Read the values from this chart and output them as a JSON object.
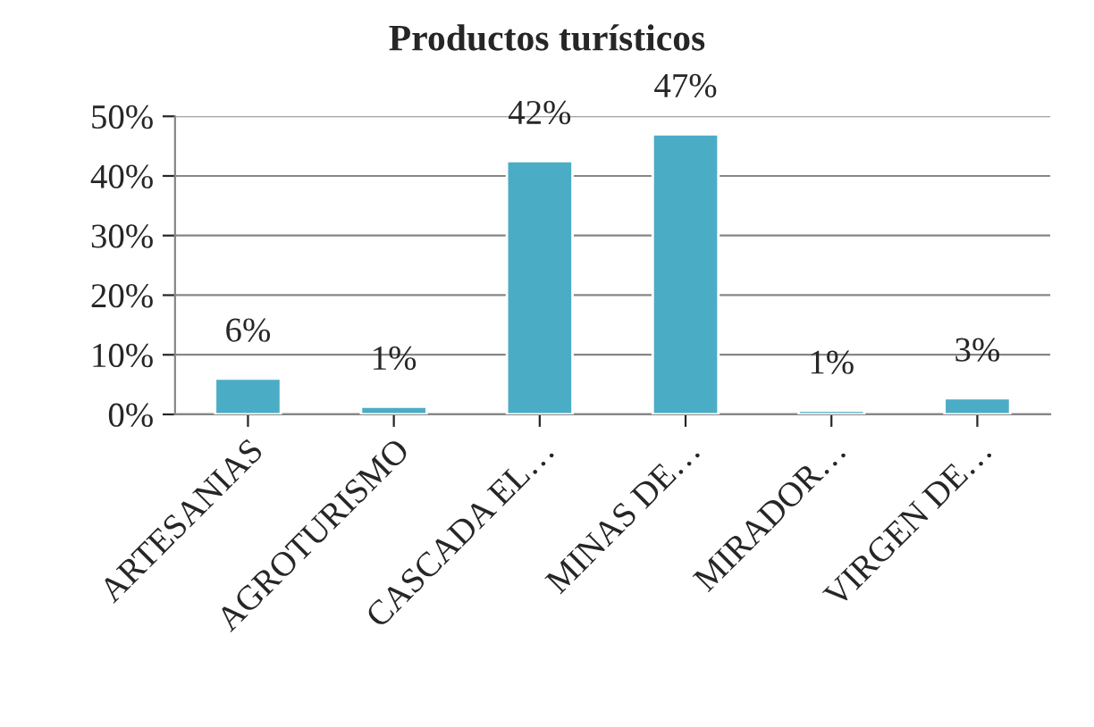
{
  "chart_data": {
    "type": "bar",
    "title": "Productos turísticos",
    "categories": [
      "ARTESANIAS",
      "AGROTURISMO",
      "CASCADA EL…",
      "MINAS DE…",
      "MIRADOR…",
      "VIRGEN DE…"
    ],
    "values": [
      6,
      1.3,
      42.5,
      47,
      0.6,
      2.7
    ],
    "value_labels": [
      "6%",
      "1%",
      "42%",
      "47%",
      "1%",
      "3%"
    ],
    "color": "#4bacc6",
    "ylim": [
      0,
      50
    ],
    "yticks": [
      {
        "value": 0,
        "label": "0%"
      },
      {
        "value": 10,
        "label": "10%"
      },
      {
        "value": 20,
        "label": "20%"
      },
      {
        "value": 30,
        "label": "30%"
      },
      {
        "value": 40,
        "label": "40%"
      },
      {
        "value": 50,
        "label": "50%"
      }
    ],
    "grid": "y",
    "legend": false
  }
}
